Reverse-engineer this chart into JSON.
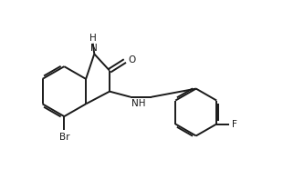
{
  "background_color": "#ffffff",
  "line_color": "#1a1a1a",
  "line_width": 1.4,
  "figsize": [
    3.33,
    1.86
  ],
  "dpi": 100,
  "xlim": [
    0,
    10
  ],
  "ylim": [
    0,
    6
  ],
  "atoms": {
    "N": "N",
    "H": "H",
    "O": "O",
    "NH": "NH",
    "Br": "Br",
    "F": "F"
  },
  "font_size": 7.5
}
